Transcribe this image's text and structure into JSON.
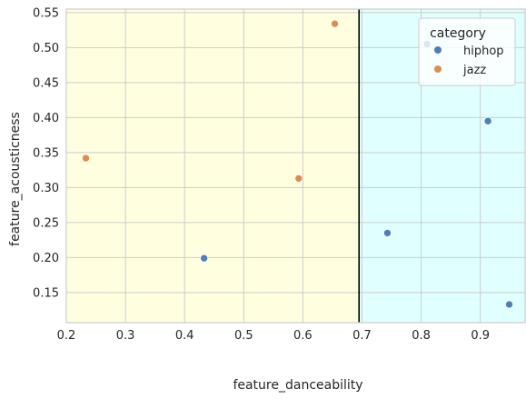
{
  "chart_data": {
    "type": "scatter",
    "xlabel": "feature_danceability",
    "ylabel": "feature_acousticness",
    "xlim": [
      0.2,
      0.985
    ],
    "ylim": [
      0.107,
      0.555
    ],
    "xticks": [
      "0.2",
      "0.3",
      "0.4",
      "0.5",
      "0.6",
      "0.7",
      "0.8",
      "0.9"
    ],
    "yticks": [
      "0.15",
      "0.20",
      "0.25",
      "0.30",
      "0.35",
      "0.40",
      "0.45",
      "0.50",
      "0.55"
    ],
    "grid": true,
    "threshold_x": 0.695,
    "regions": [
      {
        "from": 0.2,
        "to": 0.695,
        "color": "#ffffe0"
      },
      {
        "from": 0.695,
        "to": 0.985,
        "color": "#e0ffff"
      }
    ],
    "legend": {
      "title": "category",
      "placement": "top-right"
    },
    "series": [
      {
        "name": "hiphop",
        "color": "#4c80b7",
        "x": [
          0.81,
          0.913,
          0.743,
          0.433,
          0.949
        ],
        "y": [
          0.505,
          0.395,
          0.235,
          0.199,
          0.133
        ]
      },
      {
        "name": "jazz",
        "color": "#dd8d4e",
        "x": [
          0.654,
          0.233,
          0.593
        ],
        "y": [
          0.534,
          0.342,
          0.313
        ]
      }
    ]
  }
}
